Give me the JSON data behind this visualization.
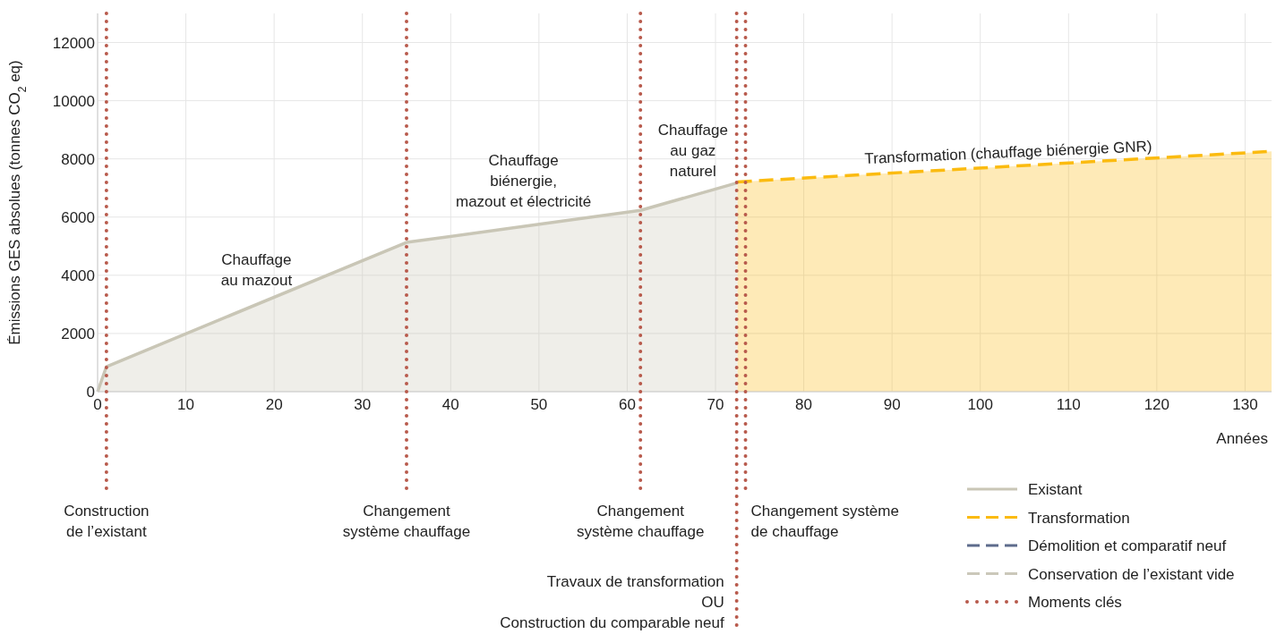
{
  "chart_data": {
    "type": "area",
    "xlabel": "Années",
    "ylabel": "Émissions GES absolues   (tonnes CO$_{2}$ eq)",
    "xlim": [
      0,
      133
    ],
    "xticks": [
      0,
      10,
      20,
      30,
      40,
      50,
      60,
      70,
      80,
      90,
      100,
      110,
      120,
      130
    ],
    "ylim": [
      0,
      13000
    ],
    "yticks": [
      0,
      2000,
      4000,
      6000,
      8000,
      10000,
      12000
    ],
    "grid": true,
    "legend": "bottom right",
    "series": [
      {
        "name": "Existant",
        "color": "#c9c6b6",
        "line_style": "solid",
        "x": [
          0,
          1,
          35,
          61.5,
          72.5
        ],
        "values": [
          0,
          860,
          5130,
          6230,
          7180
        ]
      },
      {
        "name": "Transformation",
        "color": "#fbbb10",
        "line_style": "dashed",
        "x": [
          72.5,
          133
        ],
        "values": [
          7210,
          8260
        ]
      },
      {
        "name": "Démolition et comparatif neuf",
        "color": "#5d6b8c",
        "line_style": "dashed"
      },
      {
        "name": "Conservation de l’existant vide",
        "color": "#cbc8ba",
        "line_style": "dashed"
      },
      {
        "name": "Moments clés",
        "color": "#b85a4c",
        "line_style": "dotted"
      }
    ],
    "ref_lines": [
      {
        "axis": "x",
        "value": 1,
        "label": "Construction\nde l’existant",
        "color": "#b85a4c",
        "line_style": "dotted"
      },
      {
        "axis": "x",
        "value": 35,
        "label": "Changement\nsystème chauffage",
        "color": "#b85a4c",
        "line_style": "dotted"
      },
      {
        "axis": "x",
        "value": 61.5,
        "label": "Changement\nsystème chauffage",
        "color": "#b85a4c",
        "line_style": "dotted"
      },
      {
        "axis": "x",
        "value": 72.4,
        "label": "Travaux de transformation\nOU\nConstruction du comparable neuf",
        "color": "#b85a4c",
        "line_style": "dotted"
      },
      {
        "axis": "x",
        "value": 73.4,
        "label": "Changement système\nde chauffage",
        "color": "#b85a4c",
        "line_style": "dotted"
      }
    ],
    "annotations": [
      "Chauffage\nau mazout",
      "Chauffage\nbiénergie,\nmazout et électricité",
      "Chauffage\nau gaz\nnaturel",
      "Transformation (chauffage biénergie GNR)"
    ]
  }
}
